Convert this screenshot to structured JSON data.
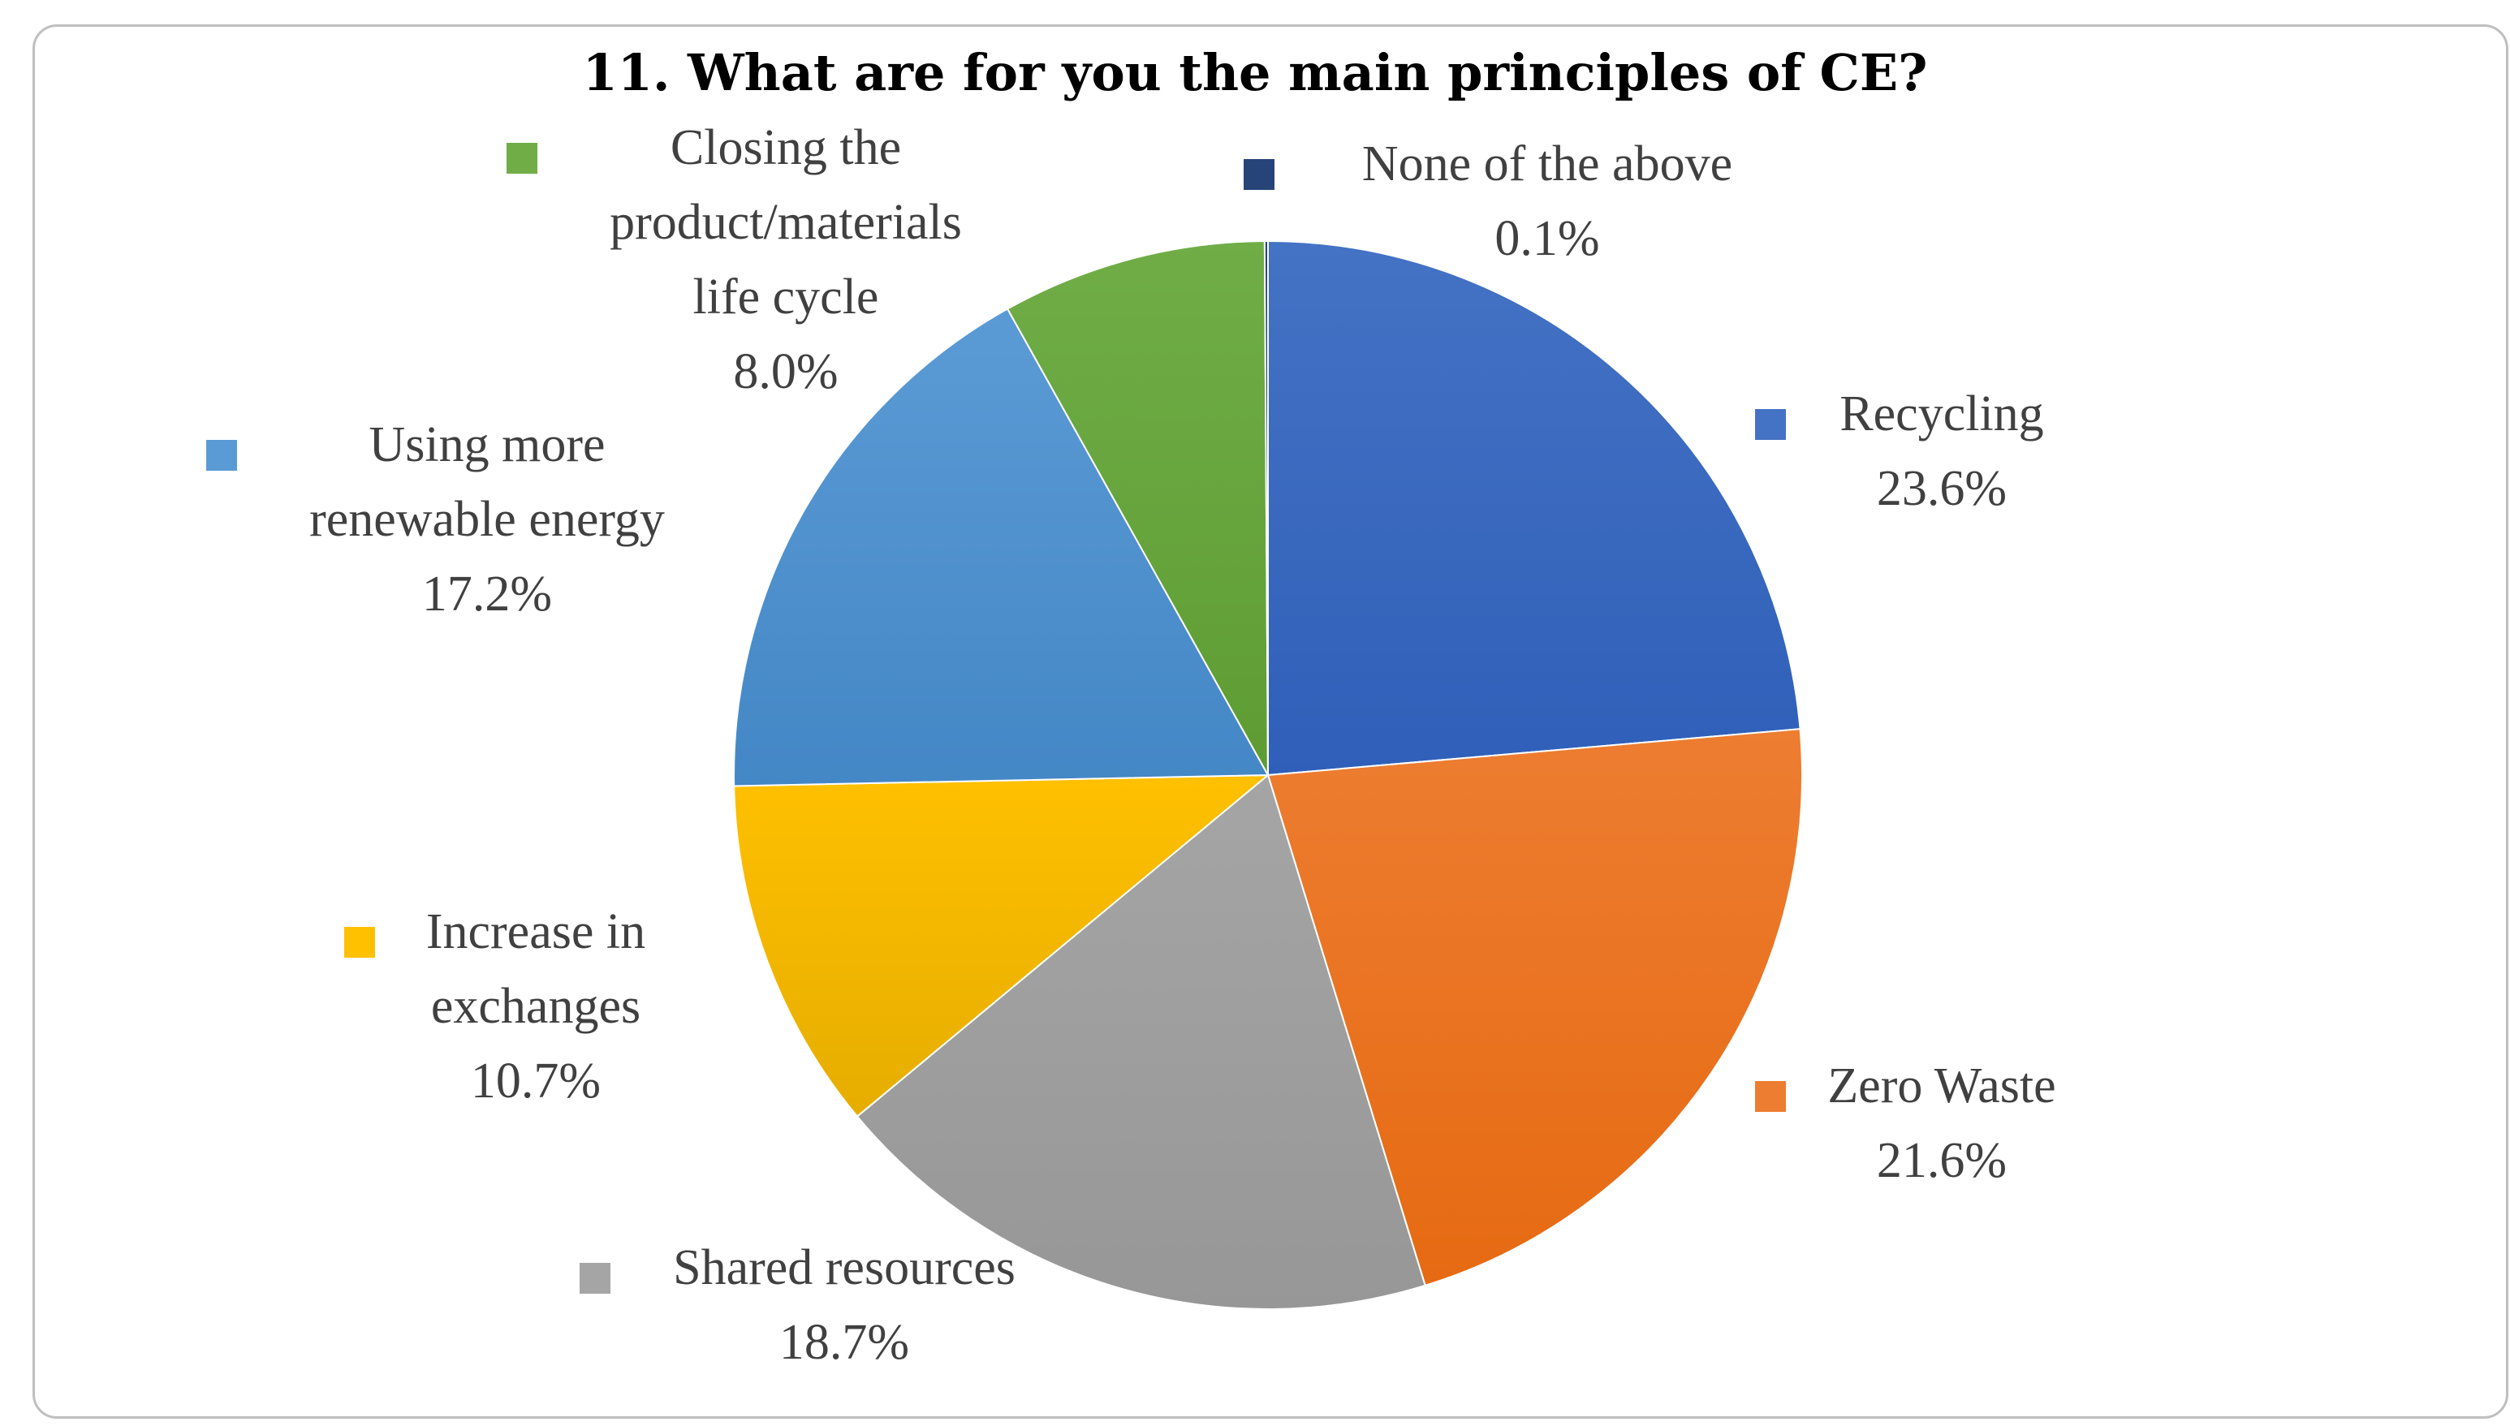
{
  "chart_data": {
    "type": "pie",
    "title": "11. What are for you the main principles of CE?",
    "start": "12 o'clock, clockwise",
    "legend": "labels beside slices",
    "slices": [
      {
        "label_lines": [
          "Recycling"
        ],
        "value": 23.6,
        "pct_text": "23.6%",
        "color": "#4472c4",
        "color_dark": "#2f5fb9"
      },
      {
        "label_lines": [
          "Zero Waste"
        ],
        "value": 21.6,
        "pct_text": "21.6%",
        "color": "#ed7d31",
        "color_dark": "#e66a12"
      },
      {
        "label_lines": [
          "Shared resources"
        ],
        "value": 18.7,
        "pct_text": "18.7%",
        "color": "#a5a5a5",
        "color_dark": "#979797"
      },
      {
        "label_lines": [
          "Increase in",
          "exchanges"
        ],
        "value": 10.7,
        "pct_text": "10.7%",
        "color": "#ffc000",
        "color_dark": "#e6ad00"
      },
      {
        "label_lines": [
          "Using more",
          "renewable energy"
        ],
        "value": 17.2,
        "pct_text": "17.2%",
        "color": "#5b9bd5",
        "color_dark": "#4487c6"
      },
      {
        "label_lines": [
          "Closing the",
          "product/materials",
          "life cycle"
        ],
        "value": 8.0,
        "pct_text": "8.0%",
        "color": "#70ad47",
        "color_dark": "#5e9c33"
      },
      {
        "label_lines": [
          "None of the above"
        ],
        "value": 0.1,
        "pct_text": "0.1%",
        "color": "#264478",
        "color_dark": "#1d3866"
      }
    ]
  }
}
